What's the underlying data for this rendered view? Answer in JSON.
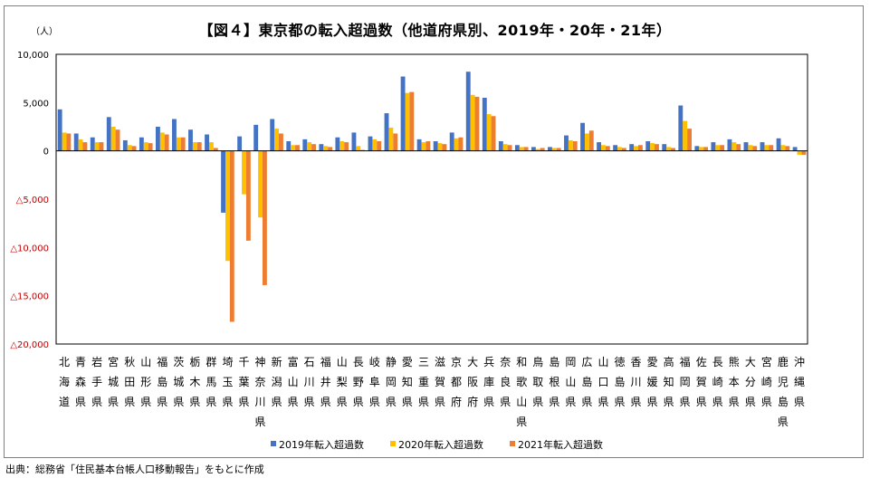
{
  "title": "【図４】東京都の転入超過数（他道府県別、2019年・20年・21年）",
  "unit_label": "（人）",
  "source": "出典：総務省「住民基本台帳人口移動報告」をもとに作成",
  "colors": {
    "series_2019": "#4472c4",
    "series_2020": "#ffc000",
    "series_2021": "#ed7d31",
    "negative_tick": "#c00000",
    "positive_tick": "#000000"
  },
  "chart_data": {
    "type": "bar",
    "ylim": [
      -20000,
      10000
    ],
    "ytick_values": [
      10000,
      5000,
      0,
      -5000,
      -10000,
      -15000,
      -20000
    ],
    "ytick_labels": [
      "10,000",
      "5,000",
      "0",
      "△5,000",
      "△10,000",
      "△15,000",
      "△20,000"
    ],
    "grid": false,
    "legend_position": "bottom",
    "categories": [
      "北海道",
      "青森県",
      "岩手県",
      "宮城県",
      "秋田県",
      "山形県",
      "福島県",
      "茨城県",
      "栃木県",
      "群馬県",
      "埼玉県",
      "千葉県",
      "神奈川県",
      "新潟県",
      "富山県",
      "石川県",
      "福井県",
      "山梨県",
      "長野県",
      "岐阜県",
      "静岡県",
      "愛知県",
      "三重県",
      "滋賀県",
      "京都府",
      "大阪府",
      "兵庫県",
      "奈良県",
      "和歌山県",
      "鳥取県",
      "島根県",
      "岡山県",
      "広島県",
      "山口県",
      "徳島県",
      "香川県",
      "愛媛県",
      "高知県",
      "福岡県",
      "佐賀県",
      "長崎県",
      "熊本県",
      "大分県",
      "宮崎県",
      "鹿児島県",
      "沖縄県"
    ],
    "series": [
      {
        "name": "2019年転入超過数",
        "values": [
          4300,
          1800,
          1400,
          3500,
          1100,
          1400,
          2500,
          3300,
          2200,
          1700,
          -6400,
          1500,
          2700,
          3300,
          1000,
          1200,
          700,
          1400,
          1900,
          1500,
          3900,
          7700,
          1200,
          1000,
          1900,
          8200,
          5500,
          1000,
          600,
          400,
          400,
          1600,
          2900,
          900,
          600,
          700,
          1000,
          700,
          4700,
          500,
          900,
          1200,
          900,
          900,
          1300,
          400
        ]
      },
      {
        "name": "2020年転入超過数",
        "values": [
          1900,
          1200,
          900,
          2500,
          600,
          900,
          1900,
          1400,
          900,
          900,
          -11400,
          -4500,
          -6900,
          2300,
          600,
          900,
          500,
          1000,
          500,
          1200,
          2400,
          6000,
          900,
          800,
          1300,
          5800,
          3800,
          700,
          400,
          200,
          300,
          1100,
          1800,
          600,
          400,
          500,
          800,
          400,
          3100,
          400,
          600,
          900,
          600,
          600,
          600,
          -400
        ]
      },
      {
        "name": "2021年転入超過数",
        "values": [
          1800,
          900,
          900,
          2200,
          500,
          800,
          1700,
          1400,
          900,
          300,
          -17700,
          -9300,
          -13900,
          1800,
          600,
          700,
          400,
          900,
          100,
          1000,
          1800,
          6100,
          1000,
          700,
          1400,
          5600,
          3600,
          600,
          400,
          300,
          300,
          1000,
          2100,
          500,
          300,
          600,
          700,
          300,
          2300,
          400,
          600,
          700,
          500,
          600,
          500,
          -400
        ]
      }
    ]
  }
}
